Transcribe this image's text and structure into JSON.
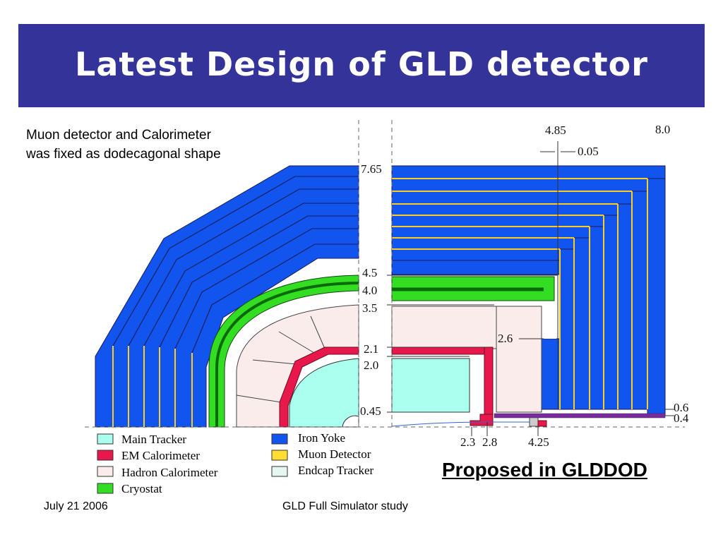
{
  "title": "Latest Design of GLD detector",
  "note_lines": [
    "Muon detector and Calorimeter",
    "was fixed as dodecagonal shape"
  ],
  "dimension_labels": {
    "r_7_65": "7.65",
    "r_4_5": "4.5",
    "r_4_0": "4.0",
    "r_3_5": "3.5",
    "r_2_1": "2.1",
    "r_2_0": "2.0",
    "r_0_45": "0.45",
    "z_4_85": "4.85",
    "z_8_0": "8.0",
    "gap_0_05": "0.05",
    "z_2_6": "2.6",
    "r_0_6": "0.6",
    "r_0_4": "0.4",
    "z_2_3": "2.3",
    "z_2_8": "2.8",
    "z_4_25": "4.25"
  },
  "legend": [
    {
      "label": "Main Tracker",
      "color": "#aaffee"
    },
    {
      "label": "EM Calorimeter",
      "color": "#e8174c"
    },
    {
      "label": "Hadron Calorimeter",
      "color": "#fbecec"
    },
    {
      "label": "Cryostat",
      "color": "#33dd22"
    },
    {
      "label": "Iron Yoke",
      "color": "#1155ee"
    },
    {
      "label": "Muon Detector",
      "color": "#ffdd33"
    },
    {
      "label": "Endcap Tracker",
      "color": "#e6f6f0"
    }
  ],
  "proposed": "Proposed in GLDDOD",
  "footer": {
    "date": "July 21 2006",
    "center": "GLD Full Simulator study"
  }
}
